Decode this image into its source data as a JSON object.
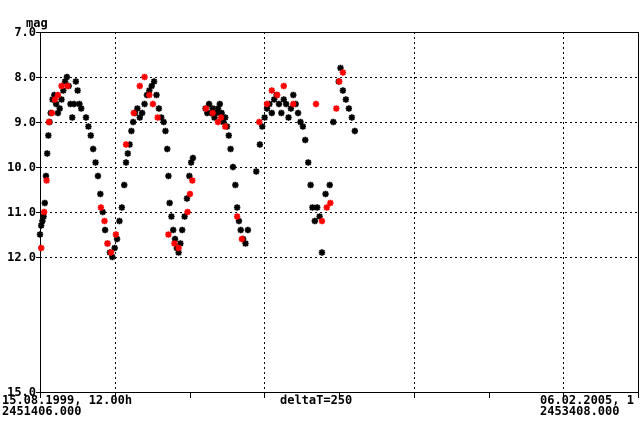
{
  "chart_data": {
    "type": "scatter",
    "title": "",
    "ylabel": "mag",
    "y_inverted": true,
    "ylim": [
      7.0,
      15.0
    ],
    "xlim": [
      2451406.0,
      2453408.0
    ],
    "y_ticks": [
      "7.0",
      "8.0",
      "9.0",
      "10.0",
      "11.0",
      "12.0",
      "15.0"
    ],
    "x_label_left_date": "15.08.1999, 12.00h",
    "x_label_left_jd": "2451406.000",
    "x_label_center": "deltaT=250",
    "x_label_right_date": "06.02.2005, 1",
    "x_label_right_jd": "2453408.000",
    "grid": true,
    "colors": {
      "black_series": "#000000",
      "red_series": "#ff0000"
    },
    "series": [
      {
        "color": "black",
        "marker": "asterisk",
        "points": [
          [
            2451406,
            11.5
          ],
          [
            2451410,
            11.3
          ],
          [
            2451414,
            11.2
          ],
          [
            2451418,
            11.1
          ],
          [
            2451422,
            10.8
          ],
          [
            2451426,
            10.2
          ],
          [
            2451430,
            9.7
          ],
          [
            2451434,
            9.3
          ],
          [
            2451438,
            9.0
          ],
          [
            2451442,
            8.8
          ],
          [
            2451448,
            8.5
          ],
          [
            2451454,
            8.4
          ],
          [
            2451460,
            8.6
          ],
          [
            2451466,
            8.8
          ],
          [
            2451472,
            8.7
          ],
          [
            2451478,
            8.5
          ],
          [
            2451484,
            8.3
          ],
          [
            2451490,
            8.1
          ],
          [
            2451496,
            8.0
          ],
          [
            2451502,
            8.2
          ],
          [
            2451508,
            8.6
          ],
          [
            2451514,
            8.9
          ],
          [
            2451520,
            8.6
          ],
          [
            2451526,
            8.1
          ],
          [
            2451532,
            8.3
          ],
          [
            2451538,
            8.6
          ],
          [
            2451544,
            8.7
          ],
          [
            2451560,
            8.9
          ],
          [
            2451568,
            9.1
          ],
          [
            2451576,
            9.3
          ],
          [
            2451584,
            9.6
          ],
          [
            2451592,
            9.9
          ],
          [
            2451600,
            10.2
          ],
          [
            2451608,
            10.6
          ],
          [
            2451616,
            11.0
          ],
          [
            2451624,
            11.4
          ],
          [
            2451632,
            11.7
          ],
          [
            2451640,
            11.9
          ],
          [
            2451648,
            12.0
          ],
          [
            2451656,
            11.8
          ],
          [
            2451664,
            11.6
          ],
          [
            2451672,
            11.2
          ],
          [
            2451680,
            10.9
          ],
          [
            2451688,
            10.4
          ],
          [
            2451694,
            9.9
          ],
          [
            2451700,
            9.7
          ],
          [
            2451706,
            9.5
          ],
          [
            2451712,
            9.2
          ],
          [
            2451718,
            9.0
          ],
          [
            2451724,
            8.8
          ],
          [
            2451732,
            8.7
          ],
          [
            2451740,
            8.9
          ],
          [
            2451748,
            8.8
          ],
          [
            2451756,
            8.6
          ],
          [
            2451764,
            8.4
          ],
          [
            2451772,
            8.3
          ],
          [
            2451780,
            8.2
          ],
          [
            2451788,
            8.1
          ],
          [
            2451796,
            8.4
          ],
          [
            2451804,
            8.7
          ],
          [
            2451812,
            8.9
          ],
          [
            2451820,
            9.0
          ],
          [
            2451826,
            9.2
          ],
          [
            2451832,
            9.6
          ],
          [
            2451836,
            10.2
          ],
          [
            2451840,
            10.8
          ],
          [
            2451846,
            11.1
          ],
          [
            2451852,
            11.4
          ],
          [
            2451858,
            11.6
          ],
          [
            2451864,
            11.8
          ],
          [
            2451870,
            11.9
          ],
          [
            2451876,
            11.7
          ],
          [
            2451882,
            11.4
          ],
          [
            2451890,
            11.1
          ],
          [
            2451898,
            10.7
          ],
          [
            2451906,
            10.2
          ],
          [
            2451912,
            9.9
          ],
          [
            2451918,
            9.8
          ],
          [
            2451960,
            8.7
          ],
          [
            2451966,
            8.8
          ],
          [
            2451972,
            8.6
          ],
          [
            2451978,
            8.8
          ],
          [
            2451984,
            8.7
          ],
          [
            2451990,
            8.9
          ],
          [
            2451996,
            8.8
          ],
          [
            2452002,
            8.7
          ],
          [
            2452008,
            8.6
          ],
          [
            2452014,
            8.8
          ],
          [
            2452020,
            9.0
          ],
          [
            2452026,
            8.9
          ],
          [
            2452032,
            9.1
          ],
          [
            2452038,
            9.3
          ],
          [
            2452044,
            9.6
          ],
          [
            2452052,
            10.0
          ],
          [
            2452060,
            10.4
          ],
          [
            2452066,
            10.9
          ],
          [
            2452072,
            11.2
          ],
          [
            2452078,
            11.4
          ],
          [
            2452086,
            11.6
          ],
          [
            2452094,
            11.7
          ],
          [
            2452102,
            11.4
          ],
          [
            2452130,
            10.1
          ],
          [
            2452142,
            9.5
          ],
          [
            2452150,
            9.1
          ],
          [
            2452158,
            8.9
          ],
          [
            2452166,
            8.7
          ],
          [
            2452174,
            8.6
          ],
          [
            2452182,
            8.8
          ],
          [
            2452190,
            8.5
          ],
          [
            2452198,
            8.4
          ],
          [
            2452206,
            8.6
          ],
          [
            2452214,
            8.8
          ],
          [
            2452222,
            8.5
          ],
          [
            2452230,
            8.6
          ],
          [
            2452238,
            8.9
          ],
          [
            2452246,
            8.7
          ],
          [
            2452254,
            8.4
          ],
          [
            2452262,
            8.6
          ],
          [
            2452270,
            8.8
          ],
          [
            2452278,
            9.0
          ],
          [
            2452286,
            9.1
          ],
          [
            2452294,
            9.4
          ],
          [
            2452304,
            9.9
          ],
          [
            2452312,
            10.4
          ],
          [
            2452318,
            10.9
          ],
          [
            2452326,
            11.2
          ],
          [
            2452334,
            10.9
          ],
          [
            2452342,
            11.1
          ],
          [
            2452350,
            11.9
          ],
          [
            2452362,
            10.6
          ],
          [
            2452376,
            10.4
          ],
          [
            2452388,
            9.0
          ],
          [
            2452406,
            8.1
          ],
          [
            2452412,
            7.8
          ],
          [
            2452420,
            8.3
          ],
          [
            2452430,
            8.5
          ],
          [
            2452440,
            8.7
          ],
          [
            2452450,
            8.9
          ],
          [
            2452460,
            9.2
          ]
        ]
      },
      {
        "color": "red",
        "marker": "asterisk",
        "points": [
          [
            2451410,
            11.8
          ],
          [
            2451420,
            11.0
          ],
          [
            2451428,
            10.3
          ],
          [
            2451436,
            9.0
          ],
          [
            2451446,
            8.8
          ],
          [
            2451456,
            8.5
          ],
          [
            2451466,
            8.4
          ],
          [
            2451478,
            8.2
          ],
          [
            2451498,
            8.2
          ],
          [
            2451610,
            10.9
          ],
          [
            2451622,
            11.2
          ],
          [
            2451632,
            11.7
          ],
          [
            2451644,
            11.9
          ],
          [
            2451660,
            11.5
          ],
          [
            2451694,
            9.5
          ],
          [
            2451720,
            8.8
          ],
          [
            2451740,
            8.2
          ],
          [
            2451756,
            8.0
          ],
          [
            2451772,
            8.4
          ],
          [
            2451784,
            8.6
          ],
          [
            2451800,
            8.9
          ],
          [
            2451836,
            11.5
          ],
          [
            2451856,
            11.7
          ],
          [
            2451870,
            11.8
          ],
          [
            2451900,
            11.0
          ],
          [
            2451908,
            10.6
          ],
          [
            2451916,
            10.3
          ],
          [
            2451962,
            8.7
          ],
          [
            2451984,
            8.8
          ],
          [
            2452002,
            9.0
          ],
          [
            2452012,
            8.9
          ],
          [
            2452026,
            9.1
          ],
          [
            2452066,
            11.1
          ],
          [
            2452082,
            11.6
          ],
          [
            2452140,
            9.0
          ],
          [
            2452166,
            8.6
          ],
          [
            2452182,
            8.3
          ],
          [
            2452200,
            8.4
          ],
          [
            2452222,
            8.2
          ],
          [
            2452254,
            8.6
          ],
          [
            2452330,
            8.6
          ],
          [
            2452350,
            11.2
          ],
          [
            2452366,
            10.9
          ],
          [
            2452378,
            10.8
          ],
          [
            2452398,
            8.7
          ],
          [
            2452408,
            8.1
          ],
          [
            2452420,
            7.9
          ]
        ]
      }
    ]
  }
}
